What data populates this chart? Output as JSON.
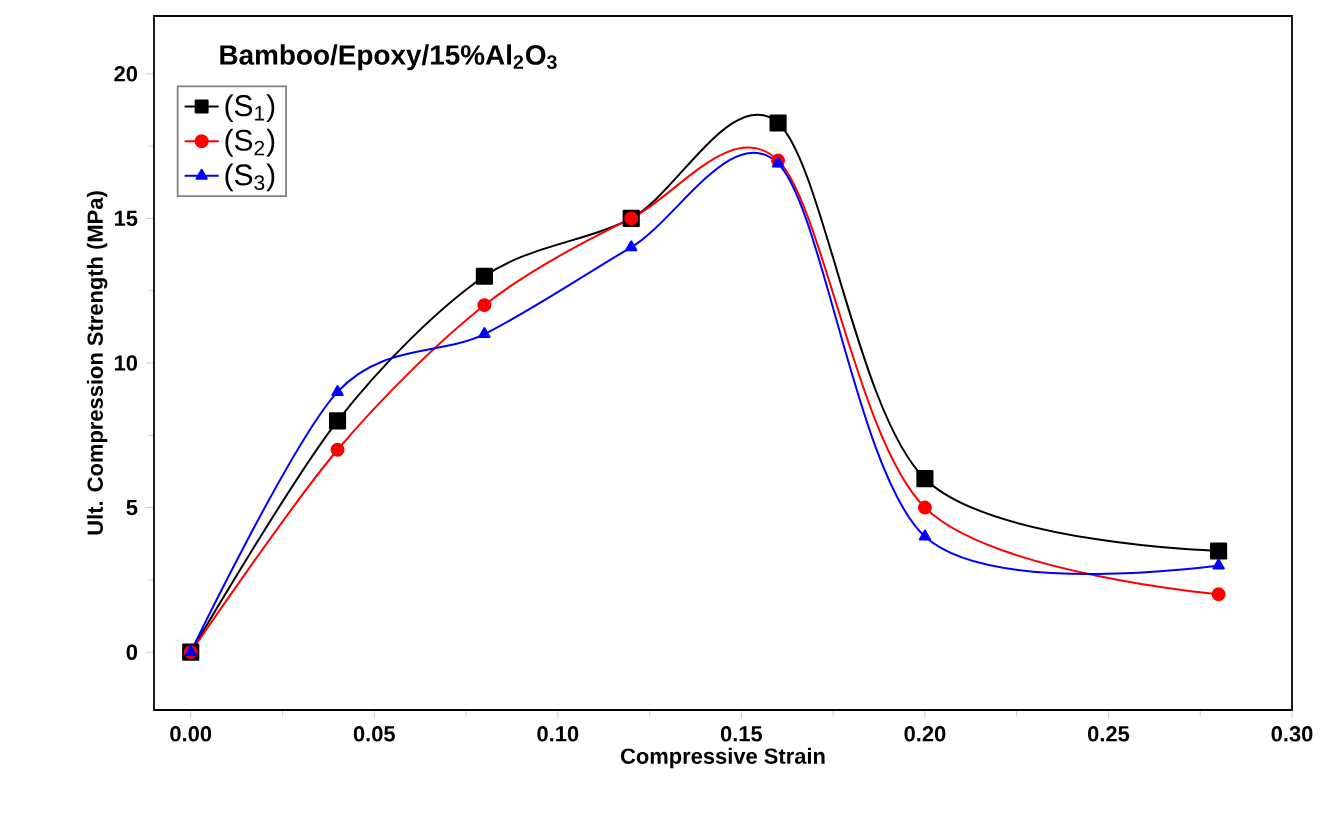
{
  "chart_data": {
    "type": "line",
    "title": "**Bamboo/Epoxy/15%Al$_{2}$O$_{3}$**",
    "xlabel": "Compressive Strain",
    "ylabel": "Ult. Compression Strength (MPa)",
    "x": [
      0,
      0.04,
      0.08,
      0.12,
      0.16,
      0.2,
      0.28
    ],
    "series": [
      {
        "name": "(S$_{1}$)",
        "color": "#000000",
        "marker": "square",
        "values": [
          0,
          8,
          13,
          15,
          18.3,
          6,
          3.5
        ]
      },
      {
        "name": "(S$_{2}$)",
        "color": "#ff0000",
        "marker": "circle",
        "values": [
          0,
          7,
          12,
          15,
          17,
          5,
          2
        ]
      },
      {
        "name": "(S$_{3}$)",
        "color": "#0000ff",
        "marker": "triangle",
        "values": [
          0,
          9,
          11,
          14,
          16.9,
          4,
          3
        ]
      }
    ],
    "xlim": [
      -0.01,
      0.3
    ],
    "ylim": [
      -2,
      22
    ],
    "xticks": [
      {
        "value": 0,
        "label": "0.00"
      },
      {
        "value": 0.05,
        "label": "0.05"
      },
      {
        "value": 0.1,
        "label": "0.10"
      },
      {
        "value": 0.15,
        "label": "0.15"
      },
      {
        "value": 0.2,
        "label": "0.20"
      },
      {
        "value": 0.25,
        "label": "0.25"
      },
      {
        "value": 0.3,
        "label": "0.30"
      }
    ],
    "yticks": [
      0,
      5,
      10,
      15,
      20
    ],
    "legend": "top left",
    "grid": false,
    "line_style": "solid"
  }
}
